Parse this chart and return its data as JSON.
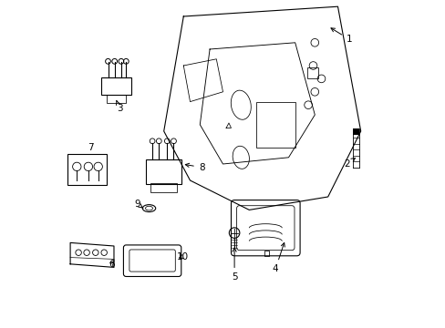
{
  "title": "",
  "background_color": "#ffffff",
  "line_color": "#000000",
  "label_color": "#000000",
  "figsize": [
    4.89,
    3.6
  ],
  "dpi": 100
}
